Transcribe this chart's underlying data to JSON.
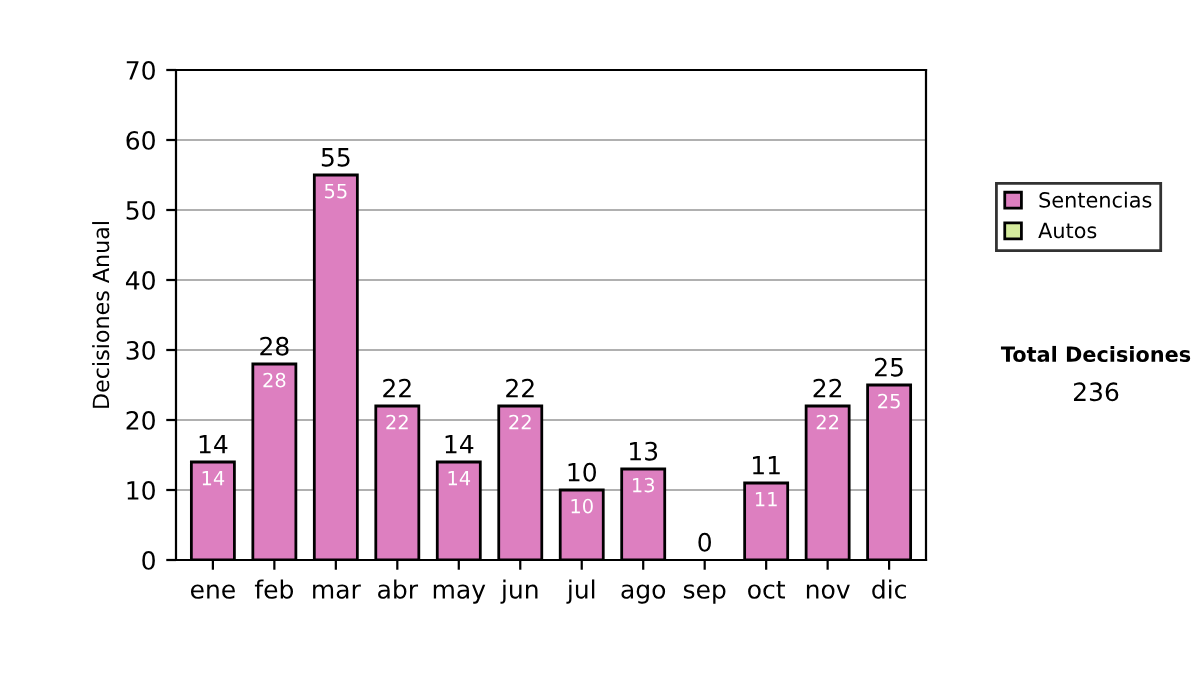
{
  "chart_data": {
    "type": "bar",
    "stacked": true,
    "ylabel": "Decisiones Anual",
    "categories": [
      "ene",
      "feb",
      "mar",
      "abr",
      "may",
      "jun",
      "jul",
      "ago",
      "sep",
      "oct",
      "nov",
      "dic"
    ],
    "series": [
      {
        "name": "Sentencias",
        "color": "#dd7fc0",
        "values": [
          14,
          28,
          55,
          22,
          14,
          22,
          10,
          13,
          0,
          11,
          22,
          25
        ],
        "value_labels": [
          "14",
          "28",
          "55",
          "22",
          "14",
          "22",
          "10",
          "13",
          null,
          "11",
          "22",
          "25"
        ]
      },
      {
        "name": "Autos",
        "color": "#d4ea9c",
        "values": [
          0,
          0,
          0,
          0,
          0,
          0,
          0,
          0,
          0,
          0,
          0,
          0
        ]
      }
    ],
    "totals": [
      "14",
      "28",
      "55",
      "22",
      "14",
      "22",
      "10",
      "13",
      "0",
      "11",
      "22",
      "25"
    ],
    "ylim": [
      0,
      70
    ],
    "yticks": [
      0,
      10,
      20,
      30,
      40,
      50,
      60,
      70
    ],
    "grid": "y",
    "legend": "right",
    "annotations": [
      "Total Decisiones",
      "236"
    ]
  }
}
